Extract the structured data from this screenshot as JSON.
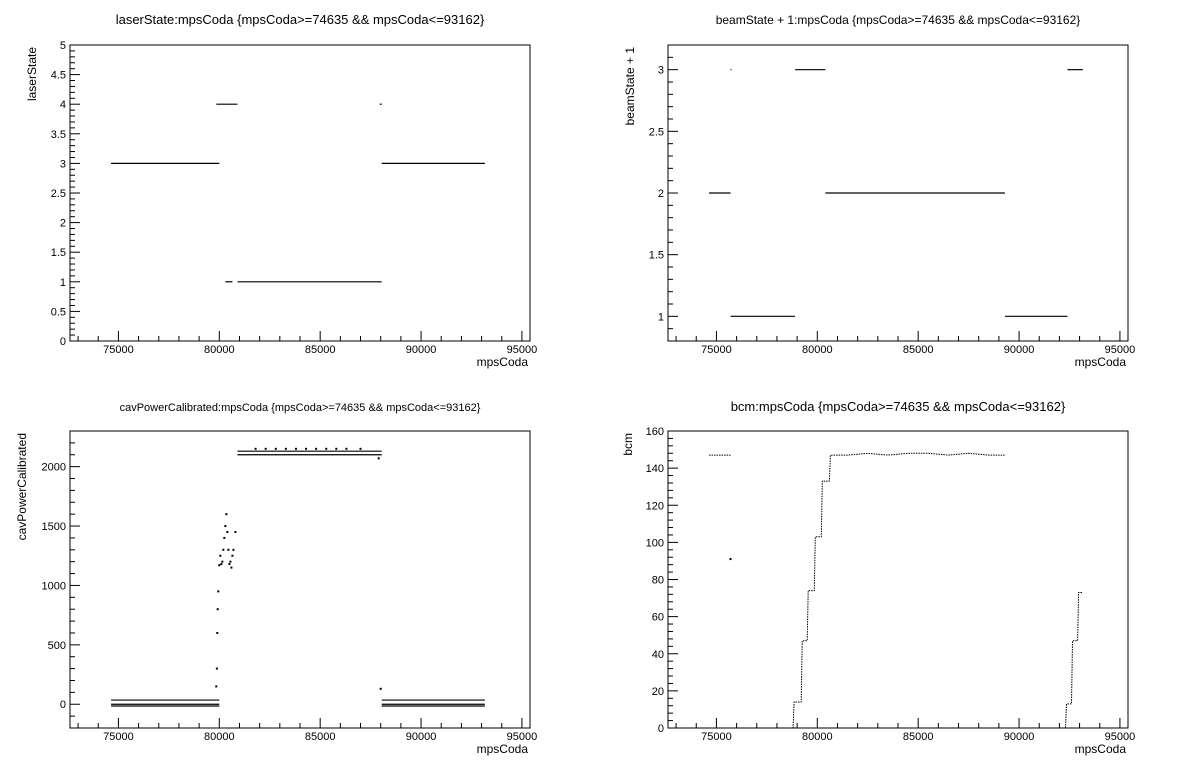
{
  "chart_data": [
    {
      "type": "scatter",
      "title": "laserState:mpsCoda {mpsCoda>=74635 && mpsCoda<=93162}",
      "xlabel": "mpsCoda",
      "ylabel": "laserState",
      "xlim": [
        72600,
        95400
      ],
      "ylim": [
        0,
        5
      ],
      "xticks": [
        75000,
        80000,
        85000,
        90000,
        95000
      ],
      "xtick_labels": [
        "75000",
        "80000",
        "85000",
        "90000",
        "95000"
      ],
      "yticks": [
        0,
        0.5,
        1,
        1.5,
        2,
        2.5,
        3,
        3.5,
        4,
        4.5,
        5
      ],
      "ytick_labels": [
        "0",
        "0.5",
        "1",
        "1.5",
        "2",
        "2.5",
        "3",
        "3.5",
        "4",
        "4.5",
        "5"
      ],
      "grid": false,
      "segments": [
        {
          "x0": 74635,
          "x1": 80000,
          "y": 3
        },
        {
          "x0": 79850,
          "x1": 80900,
          "y": 4
        },
        {
          "x0": 80300,
          "x1": 80650,
          "y": 1
        },
        {
          "x0": 80900,
          "x1": 88050,
          "y": 1
        },
        {
          "x0": 87950,
          "x1": 88050,
          "y": 4
        },
        {
          "x0": 88050,
          "x1": 93162,
          "y": 3
        }
      ]
    },
    {
      "type": "scatter",
      "title": "beamState + 1:mpsCoda {mpsCoda>=74635 && mpsCoda<=93162}",
      "xlabel": "mpsCoda",
      "ylabel": "beamState + 1",
      "xlim": [
        72600,
        95400
      ],
      "ylim": [
        0.8,
        3.2
      ],
      "xticks": [
        75000,
        80000,
        85000,
        90000,
        95000
      ],
      "xtick_labels": [
        "75000",
        "80000",
        "85000",
        "90000",
        "95000"
      ],
      "yticks": [
        1,
        1.5,
        2,
        2.5,
        3
      ],
      "ytick_labels": [
        "1",
        "1.5",
        "2",
        "2.5",
        "3"
      ],
      "grid": false,
      "segments": [
        {
          "x0": 74635,
          "x1": 75700,
          "y": 2
        },
        {
          "x0": 75700,
          "x1": 78900,
          "y": 1
        },
        {
          "x0": 75700,
          "x1": 75750,
          "y": 3
        },
        {
          "x0": 78900,
          "x1": 80400,
          "y": 3
        },
        {
          "x0": 80400,
          "x1": 89300,
          "y": 2
        },
        {
          "x0": 89300,
          "x1": 92400,
          "y": 1
        },
        {
          "x0": 92400,
          "x1": 93162,
          "y": 3
        }
      ]
    },
    {
      "type": "scatter",
      "title": "cavPowerCalibrated:mpsCoda {mpsCoda>=74635 && mpsCoda<=93162}",
      "xlabel": "mpsCoda",
      "ylabel": "cavPowerCalibrated",
      "xlim": [
        72600,
        95400
      ],
      "ylim": [
        -200,
        2300
      ],
      "xticks": [
        75000,
        80000,
        85000,
        90000,
        95000
      ],
      "xtick_labels": [
        "75000",
        "80000",
        "85000",
        "90000",
        "95000"
      ],
      "yticks": [
        0,
        500,
        1000,
        1500,
        2000
      ],
      "ytick_labels": [
        "0",
        "500",
        "1000",
        "1500",
        "2000"
      ],
      "grid": false,
      "segments": [
        {
          "x0": 74635,
          "x1": 80000,
          "y": 35
        },
        {
          "x0": 74635,
          "x1": 80000,
          "y": 0
        },
        {
          "x0": 74635,
          "x1": 80000,
          "y": -15
        },
        {
          "x0": 80900,
          "x1": 88050,
          "y": 2130
        },
        {
          "x0": 80900,
          "x1": 88050,
          "y": 2100
        },
        {
          "x0": 88050,
          "x1": 93162,
          "y": 35
        },
        {
          "x0": 88050,
          "x1": 93162,
          "y": 0
        },
        {
          "x0": 88050,
          "x1": 93162,
          "y": -15
        }
      ],
      "points": [
        [
          79850,
          150
        ],
        [
          79880,
          300
        ],
        [
          79900,
          600
        ],
        [
          79920,
          800
        ],
        [
          79950,
          950
        ],
        [
          80000,
          1170
        ],
        [
          80050,
          1250
        ],
        [
          80100,
          1180
        ],
        [
          80150,
          1200
        ],
        [
          80200,
          1300
        ],
        [
          80250,
          1400
        ],
        [
          80300,
          1500
        ],
        [
          80350,
          1600
        ],
        [
          80400,
          1450
        ],
        [
          80450,
          1300
        ],
        [
          80500,
          1180
        ],
        [
          80550,
          1200
        ],
        [
          80600,
          1150
        ],
        [
          80650,
          1250
        ],
        [
          80700,
          1300
        ],
        [
          80800,
          1450
        ],
        [
          81800,
          2150
        ],
        [
          82300,
          2150
        ],
        [
          82800,
          2150
        ],
        [
          83300,
          2150
        ],
        [
          83800,
          2150
        ],
        [
          84300,
          2150
        ],
        [
          84800,
          2150
        ],
        [
          85300,
          2150
        ],
        [
          85800,
          2150
        ],
        [
          86300,
          2150
        ],
        [
          87000,
          2150
        ],
        [
          87900,
          2070
        ],
        [
          88000,
          130
        ]
      ]
    },
    {
      "type": "scatter",
      "title": "bcm:mpsCoda {mpsCoda>=74635 && mpsCoda<=93162}",
      "xlabel": "mpsCoda",
      "ylabel": "bcm",
      "xlim": [
        72600,
        95400
      ],
      "ylim": [
        0,
        160
      ],
      "xticks": [
        75000,
        80000,
        85000,
        90000,
        95000
      ],
      "xtick_labels": [
        "75000",
        "80000",
        "85000",
        "90000",
        "95000"
      ],
      "yticks": [
        0,
        20,
        40,
        60,
        80,
        100,
        120,
        140,
        160
      ],
      "ytick_labels": [
        "0",
        "20",
        "40",
        "60",
        "80",
        "100",
        "120",
        "140",
        "160"
      ],
      "grid": false,
      "polylines": [
        [
          [
            74635,
            147
          ],
          [
            75700,
            147
          ]
        ],
        [
          [
            78800,
            0
          ],
          [
            78850,
            14
          ],
          [
            79200,
            14
          ],
          [
            79250,
            47
          ],
          [
            79500,
            47
          ],
          [
            79550,
            74
          ],
          [
            79850,
            74
          ],
          [
            79900,
            103
          ],
          [
            80200,
            103
          ],
          [
            80250,
            133
          ],
          [
            80600,
            133
          ],
          [
            80650,
            147
          ],
          [
            81500,
            147
          ],
          [
            82500,
            148
          ],
          [
            83500,
            147
          ],
          [
            84500,
            148
          ],
          [
            85500,
            148
          ],
          [
            86500,
            147
          ],
          [
            87500,
            148
          ],
          [
            88500,
            147
          ],
          [
            89300,
            147
          ]
        ],
        [
          [
            92300,
            0
          ],
          [
            92350,
            13
          ],
          [
            92600,
            13
          ],
          [
            92650,
            47
          ],
          [
            92900,
            47
          ],
          [
            92950,
            73
          ],
          [
            93162,
            73
          ]
        ]
      ],
      "points": [
        [
          75700,
          91
        ]
      ]
    }
  ]
}
